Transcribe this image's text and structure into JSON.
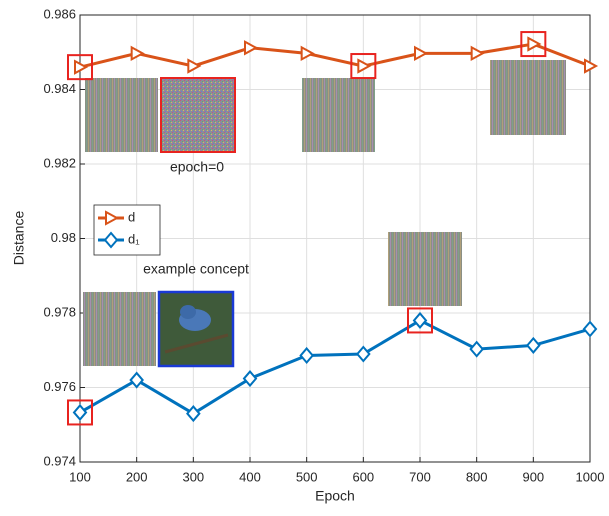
{
  "chart_data": {
    "type": "line",
    "x_label": "Epoch",
    "y_label": "Distance",
    "x": [
      100,
      200,
      300,
      400,
      500,
      600,
      700,
      800,
      900,
      1000
    ],
    "series": [
      {
        "name": "d",
        "color": "#d95319",
        "marker": "triangle-right",
        "values": [
          0.9846,
          0.98497,
          0.98463,
          0.98512,
          0.98497,
          0.98463,
          0.98497,
          0.98497,
          0.98522,
          0.98463
        ]
      },
      {
        "name": "d₁",
        "color": "#0072bd",
        "marker": "diamond",
        "values": [
          0.97533,
          0.9762,
          0.9753,
          0.97624,
          0.97686,
          0.9769,
          0.9778,
          0.97703,
          0.97713,
          0.97757
        ]
      }
    ],
    "annotations": [
      "epoch=0",
      "example concept"
    ],
    "xlim": [
      100,
      1000
    ],
    "xticks": [
      100,
      200,
      300,
      400,
      500,
      600,
      700,
      800,
      900,
      1000
    ],
    "ylim": [
      0.974,
      0.986
    ],
    "yticks": [
      0.974,
      0.976,
      0.978,
      0.98,
      0.982,
      0.984,
      0.986
    ],
    "grid": true,
    "legend": "left"
  }
}
